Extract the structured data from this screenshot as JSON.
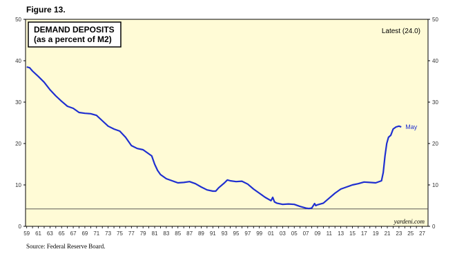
{
  "figure_label": "Figure 13.",
  "source": "Source: Federal Reserve Board.",
  "chart_data": {
    "type": "line",
    "title": "DEMAND DEPOSITS",
    "subtitle": "(as a percent of M2)",
    "annotation_latest": "Latest (24.0)",
    "end_label": "May",
    "credit": "yardeni.com",
    "ylim": [
      0,
      50
    ],
    "yticks": [
      0,
      10,
      20,
      30,
      40,
      50
    ],
    "xlim": [
      1958.8,
      2028.0
    ],
    "xtick_years": [
      1959,
      1961,
      1963,
      1965,
      1967,
      1969,
      1971,
      1973,
      1975,
      1977,
      1979,
      1981,
      1983,
      1985,
      1987,
      1989,
      1991,
      1993,
      1995,
      1997,
      1999,
      2001,
      2003,
      2005,
      2007,
      2009,
      2011,
      2013,
      2015,
      2017,
      2019,
      2021,
      2023,
      2025,
      2027
    ],
    "xtick_labels": [
      "59",
      "61",
      "63",
      "65",
      "67",
      "69",
      "71",
      "73",
      "75",
      "77",
      "79",
      "81",
      "83",
      "85",
      "87",
      "89",
      "91",
      "93",
      "95",
      "97",
      "99",
      "01",
      "03",
      "05",
      "07",
      "09",
      "11",
      "13",
      "15",
      "17",
      "19",
      "21",
      "23",
      "25",
      "27"
    ],
    "reference_line": 4.2,
    "line_color": "#1f2fd0",
    "background_color": "#fffbd6",
    "grid": false,
    "series": [
      {
        "x": [
          1959.0,
          1959.5,
          1960.0,
          1961.0,
          1962.0,
          1963.0,
          1964.0,
          1965.0,
          1966.0,
          1967.0,
          1968.0,
          1969.0,
          1970.0,
          1971.0,
          1972.0,
          1973.0,
          1974.0,
          1975.0,
          1976.0,
          1977.0,
          1978.0,
          1979.0,
          1980.0,
          1980.5,
          1981.0,
          1981.5,
          1982.0,
          1983.0,
          1984.0,
          1985.0,
          1986.0,
          1987.0,
          1988.0,
          1989.0,
          1990.0,
          1991.0,
          1991.5,
          1992.0,
          1993.0,
          1993.5,
          1994.0,
          1995.0,
          1996.0,
          1997.0,
          1998.0,
          1999.0,
          2000.0,
          2001.0,
          2001.3,
          2001.6,
          2002.0,
          2003.0,
          2004.0,
          2005.0,
          2006.0,
          2007.0,
          2007.5,
          2008.0,
          2008.5,
          2008.7,
          2009.0,
          2010.0,
          2011.0,
          2012.0,
          2013.0,
          2014.0,
          2015.0,
          2016.0,
          2017.0,
          2018.0,
          2019.0,
          2020.0,
          2020.3,
          2020.6,
          2020.9,
          2021.2,
          2021.6,
          2022.0,
          2022.5,
          2023.0,
          2023.4
        ],
        "y": [
          38.5,
          38.3,
          37.5,
          36.2,
          34.8,
          33.0,
          31.5,
          30.2,
          29.0,
          28.5,
          27.5,
          27.3,
          27.2,
          26.8,
          25.5,
          24.2,
          23.5,
          23.0,
          21.5,
          19.5,
          18.8,
          18.5,
          17.5,
          17.0,
          15.0,
          13.5,
          12.5,
          11.5,
          11.0,
          10.5,
          10.6,
          10.8,
          10.3,
          9.5,
          8.8,
          8.5,
          8.5,
          9.3,
          10.5,
          11.2,
          11.0,
          10.8,
          10.9,
          10.2,
          9.0,
          8.0,
          7.0,
          6.2,
          7.0,
          5.9,
          5.6,
          5.3,
          5.4,
          5.3,
          4.8,
          4.4,
          4.3,
          4.4,
          5.5,
          5.0,
          5.2,
          5.6,
          6.8,
          8.0,
          9.0,
          9.5,
          10.0,
          10.3,
          10.7,
          10.6,
          10.5,
          11.0,
          13.0,
          17.0,
          20.0,
          21.5,
          22.0,
          23.5,
          24.0,
          24.2,
          24.0
        ]
      }
    ]
  }
}
